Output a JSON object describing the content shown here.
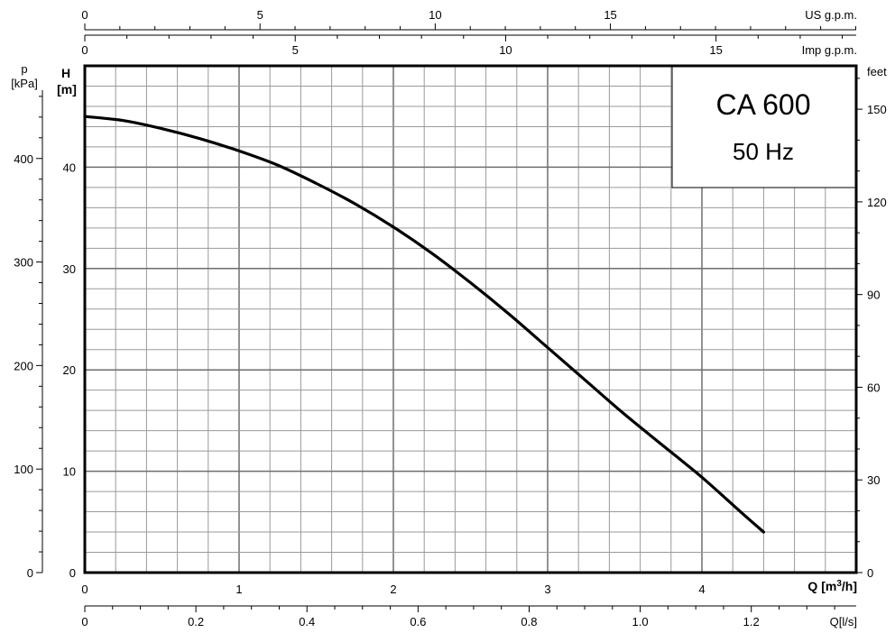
{
  "chart_data": {
    "type": "line",
    "title": "CA 600",
    "subtitle": "50 Hz",
    "xlabel": "Q [m³/h]",
    "ylabel": "H [m]",
    "xlim": [
      0,
      5
    ],
    "ylim": [
      0,
      50
    ],
    "grid": true,
    "x_ticks": [
      0,
      1,
      2,
      3,
      4
    ],
    "y_ticks": [
      0,
      10,
      20,
      30,
      40
    ],
    "series": [
      {
        "name": "",
        "color": "#000000",
        "x": [
          0,
          0.25,
          0.5,
          0.75,
          1.0,
          1.25,
          1.5,
          1.75,
          2.0,
          2.25,
          2.5,
          2.75,
          3.0,
          3.25,
          3.5,
          3.75,
          4.0,
          4.25,
          4.4
        ],
        "y": [
          45.0,
          44.6,
          43.8,
          42.8,
          41.6,
          40.2,
          38.4,
          36.4,
          34.1,
          31.5,
          28.6,
          25.5,
          22.2,
          18.9,
          15.6,
          12.5,
          9.4,
          6.0,
          4.0
        ]
      }
    ],
    "axes": {
      "us_gpm": {
        "label": "US g.p.m.",
        "ticks": [
          0,
          5,
          10,
          15
        ],
        "tick_labels": [
          "0",
          "5",
          "10",
          "15"
        ],
        "minor_step": 1,
        "per_m3h": 4.4029
      },
      "imp_gpm": {
        "label": "Imp g.p.m.",
        "ticks": [
          0,
          5,
          10,
          15
        ],
        "tick_labels": [
          "0",
          "5",
          "10",
          "15"
        ],
        "minor_step": 1,
        "per_m3h": 3.6662
      },
      "q_ls": {
        "label": "Q[l/s]",
        "ticks": [
          0,
          0.2,
          0.4,
          0.6,
          0.8,
          1.0,
          1.2
        ],
        "tick_labels": [
          "0",
          "0.2",
          "0.4",
          "0.6",
          "0.8",
          "1.0",
          "1.2"
        ],
        "minor_step": 0.05,
        "per_m3h": 0.27778
      },
      "q_m3h": {
        "label_prefix": "Q",
        "label_unit": "[m",
        "label_sup": "3",
        "label_suffix": "/h]",
        "tick_labels": [
          "0",
          "1",
          "2",
          "3",
          "4"
        ]
      },
      "h_m": {
        "label_line1": "H",
        "label_line2": "[m]",
        "tick_labels": [
          "0",
          "10",
          "20",
          "30",
          "40"
        ]
      },
      "p_kpa": {
        "label_line1": "p",
        "label_line2": "[kPa]",
        "ticks": [
          0,
          100,
          200,
          300,
          400
        ],
        "tick_labels": [
          "0",
          "100",
          "200",
          "300",
          "400"
        ],
        "minor_step": 20,
        "per_m": 9.79
      },
      "feet": {
        "label": "feet",
        "ticks": [
          0,
          30,
          60,
          90,
          120,
          150
        ],
        "tick_labels": [
          "0",
          "30",
          "60",
          "90",
          "120",
          "150"
        ],
        "minor_step": 10,
        "per_m": 3.2808
      }
    }
  }
}
